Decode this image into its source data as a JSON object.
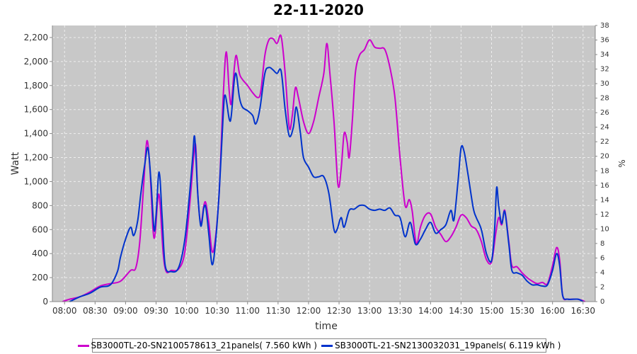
{
  "chart_data": {
    "type": "line",
    "title": "22-11-2020",
    "xlabel": "time",
    "ylabel": "Watt",
    "y2label": "%",
    "xlim": [
      "07:48",
      "16:42"
    ],
    "ylim": [
      0,
      2300
    ],
    "y2lim": [
      0,
      38
    ],
    "yticks": [
      "0",
      "200",
      "400",
      "600",
      "800",
      "1,000",
      "1,200",
      "1,400",
      "1,600",
      "1,800",
      "2,000",
      "2,200"
    ],
    "y2ticks": [
      "0",
      "2",
      "4",
      "6",
      "8",
      "10",
      "12",
      "14",
      "16",
      "18",
      "20",
      "22",
      "24",
      "26",
      "28",
      "30",
      "32",
      "34",
      "36",
      "38"
    ],
    "xticks": [
      "08:00",
      "08:30",
      "09:00",
      "09:30",
      "10:00",
      "10:30",
      "11:00",
      "11:30",
      "12:00",
      "12:30",
      "13:00",
      "13:30",
      "14:00",
      "14:30",
      "15:00",
      "15:30",
      "16:00",
      "16:30"
    ],
    "grid": true,
    "legend_position": "bottom",
    "background": "#c8c8c8",
    "series": [
      {
        "name": "SB3000TL-20-SN2100578613_21panels( 7.560 kWh )",
        "color": "#cc00cc",
        "points": [
          [
            "07:58",
            0
          ],
          [
            "08:05",
            20
          ],
          [
            "08:15",
            40
          ],
          [
            "08:25",
            80
          ],
          [
            "08:35",
            130
          ],
          [
            "08:45",
            150
          ],
          [
            "08:55",
            170
          ],
          [
            "09:05",
            260
          ],
          [
            "09:10",
            280
          ],
          [
            "09:14",
            500
          ],
          [
            "09:18",
            1000
          ],
          [
            "09:21",
            1340
          ],
          [
            "09:24",
            1100
          ],
          [
            "09:27",
            600
          ],
          [
            "09:29",
            560
          ],
          [
            "09:32",
            880
          ],
          [
            "09:34",
            800
          ],
          [
            "09:37",
            400
          ],
          [
            "09:40",
            250
          ],
          [
            "09:45",
            260
          ],
          [
            "09:52",
            270
          ],
          [
            "09:58",
            400
          ],
          [
            "10:03",
            800
          ],
          [
            "10:07",
            1200
          ],
          [
            "10:09",
            1300
          ],
          [
            "10:11",
            900
          ],
          [
            "10:14",
            650
          ],
          [
            "10:17",
            800
          ],
          [
            "10:19",
            820
          ],
          [
            "10:22",
            650
          ],
          [
            "10:25",
            420
          ],
          [
            "10:28",
            500
          ],
          [
            "10:32",
            900
          ],
          [
            "10:36",
            1700
          ],
          [
            "10:39",
            2080
          ],
          [
            "10:42",
            1750
          ],
          [
            "10:44",
            1650
          ],
          [
            "10:47",
            1950
          ],
          [
            "10:49",
            2050
          ],
          [
            "10:52",
            1900
          ],
          [
            "10:55",
            1850
          ],
          [
            "11:00",
            1800
          ],
          [
            "11:05",
            1740
          ],
          [
            "11:10",
            1700
          ],
          [
            "11:13",
            1750
          ],
          [
            "11:17",
            2050
          ],
          [
            "11:21",
            2180
          ],
          [
            "11:25",
            2190
          ],
          [
            "11:29",
            2150
          ],
          [
            "11:33",
            2210
          ],
          [
            "11:37",
            1900
          ],
          [
            "11:41",
            1450
          ],
          [
            "11:44",
            1550
          ],
          [
            "11:47",
            1780
          ],
          [
            "11:50",
            1700
          ],
          [
            "11:55",
            1500
          ],
          [
            "12:00",
            1400
          ],
          [
            "12:05",
            1500
          ],
          [
            "12:10",
            1700
          ],
          [
            "12:15",
            1900
          ],
          [
            "12:18",
            2150
          ],
          [
            "12:21",
            1900
          ],
          [
            "12:25",
            1500
          ],
          [
            "12:29",
            970
          ],
          [
            "12:32",
            1100
          ],
          [
            "12:35",
            1400
          ],
          [
            "12:38",
            1330
          ],
          [
            "12:40",
            1200
          ],
          [
            "12:43",
            1500
          ],
          [
            "12:46",
            1900
          ],
          [
            "12:50",
            2050
          ],
          [
            "12:55",
            2100
          ],
          [
            "13:00",
            2180
          ],
          [
            "13:05",
            2120
          ],
          [
            "13:10",
            2110
          ],
          [
            "13:15",
            2100
          ],
          [
            "13:20",
            1950
          ],
          [
            "13:25",
            1700
          ],
          [
            "13:30",
            1200
          ],
          [
            "13:35",
            800
          ],
          [
            "13:39",
            850
          ],
          [
            "13:42",
            750
          ],
          [
            "13:46",
            480
          ],
          [
            "13:50",
            620
          ],
          [
            "13:55",
            720
          ],
          [
            "14:00",
            730
          ],
          [
            "14:05",
            620
          ],
          [
            "14:10",
            560
          ],
          [
            "14:15",
            500
          ],
          [
            "14:20",
            540
          ],
          [
            "14:25",
            620
          ],
          [
            "14:30",
            720
          ],
          [
            "14:35",
            700
          ],
          [
            "14:40",
            630
          ],
          [
            "14:45",
            600
          ],
          [
            "14:50",
            500
          ],
          [
            "14:55",
            350
          ],
          [
            "15:00",
            330
          ],
          [
            "15:04",
            560
          ],
          [
            "15:07",
            700
          ],
          [
            "15:10",
            640
          ],
          [
            "15:13",
            760
          ],
          [
            "15:17",
            500
          ],
          [
            "15:20",
            300
          ],
          [
            "15:25",
            290
          ],
          [
            "15:30",
            240
          ],
          [
            "15:35",
            200
          ],
          [
            "15:40",
            170
          ],
          [
            "15:45",
            150
          ],
          [
            "15:50",
            160
          ],
          [
            "15:55",
            150
          ],
          [
            "16:00",
            300
          ],
          [
            "16:04",
            450
          ],
          [
            "16:07",
            350
          ],
          [
            "16:10",
            50
          ],
          [
            "16:15",
            20
          ],
          [
            "16:25",
            20
          ],
          [
            "16:32",
            0
          ]
        ]
      },
      {
        "name": "SB3000TL-21-SN2130032031_19panels( 6.119 kWh )",
        "color": "#0033cc",
        "points": [
          [
            "08:05",
            0
          ],
          [
            "08:15",
            40
          ],
          [
            "08:25",
            70
          ],
          [
            "08:35",
            120
          ],
          [
            "08:45",
            140
          ],
          [
            "08:52",
            250
          ],
          [
            "08:55",
            370
          ],
          [
            "09:00",
            520
          ],
          [
            "09:05",
            620
          ],
          [
            "09:08",
            550
          ],
          [
            "09:12",
            680
          ],
          [
            "09:15",
            900
          ],
          [
            "09:19",
            1150
          ],
          [
            "09:22",
            1280
          ],
          [
            "09:25",
            1000
          ],
          [
            "09:28",
            600
          ],
          [
            "09:30",
            720
          ],
          [
            "09:33",
            1080
          ],
          [
            "09:36",
            700
          ],
          [
            "09:39",
            300
          ],
          [
            "09:45",
            250
          ],
          [
            "09:52",
            280
          ],
          [
            "09:58",
            500
          ],
          [
            "10:03",
            900
          ],
          [
            "10:06",
            1200
          ],
          [
            "10:08",
            1370
          ],
          [
            "10:11",
            900
          ],
          [
            "10:14",
            630
          ],
          [
            "10:17",
            780
          ],
          [
            "10:19",
            780
          ],
          [
            "10:22",
            550
          ],
          [
            "10:25",
            310
          ],
          [
            "10:28",
            450
          ],
          [
            "10:32",
            900
          ],
          [
            "10:36",
            1550
          ],
          [
            "10:38",
            1720
          ],
          [
            "10:42",
            1520
          ],
          [
            "10:44",
            1550
          ],
          [
            "10:47",
            1850
          ],
          [
            "10:49",
            1890
          ],
          [
            "10:52",
            1700
          ],
          [
            "10:55",
            1620
          ],
          [
            "11:00",
            1590
          ],
          [
            "11:05",
            1550
          ],
          [
            "11:08",
            1480
          ],
          [
            "11:12",
            1600
          ],
          [
            "11:17",
            1900
          ],
          [
            "11:21",
            1950
          ],
          [
            "11:25",
            1930
          ],
          [
            "11:29",
            1900
          ],
          [
            "11:33",
            1920
          ],
          [
            "11:37",
            1600
          ],
          [
            "11:41",
            1380
          ],
          [
            "11:45",
            1450
          ],
          [
            "11:48",
            1620
          ],
          [
            "11:52",
            1400
          ],
          [
            "11:55",
            1200
          ],
          [
            "12:00",
            1120
          ],
          [
            "12:05",
            1040
          ],
          [
            "12:10",
            1040
          ],
          [
            "12:15",
            1040
          ],
          [
            "12:20",
            900
          ],
          [
            "12:25",
            600
          ],
          [
            "12:28",
            600
          ],
          [
            "12:32",
            700
          ],
          [
            "12:35",
            620
          ],
          [
            "12:40",
            760
          ],
          [
            "12:45",
            770
          ],
          [
            "12:50",
            800
          ],
          [
            "12:55",
            800
          ],
          [
            "13:00",
            770
          ],
          [
            "13:05",
            760
          ],
          [
            "13:10",
            770
          ],
          [
            "13:15",
            760
          ],
          [
            "13:20",
            780
          ],
          [
            "13:25",
            720
          ],
          [
            "13:30",
            700
          ],
          [
            "13:35",
            540
          ],
          [
            "13:40",
            660
          ],
          [
            "13:45",
            480
          ],
          [
            "13:50",
            520
          ],
          [
            "13:55",
            600
          ],
          [
            "14:00",
            660
          ],
          [
            "14:05",
            570
          ],
          [
            "14:10",
            600
          ],
          [
            "14:15",
            640
          ],
          [
            "14:20",
            760
          ],
          [
            "14:23",
            680
          ],
          [
            "14:27",
            1000
          ],
          [
            "14:30",
            1280
          ],
          [
            "14:33",
            1250
          ],
          [
            "14:37",
            1050
          ],
          [
            "14:42",
            780
          ],
          [
            "14:45",
            700
          ],
          [
            "14:50",
            600
          ],
          [
            "14:55",
            400
          ],
          [
            "15:00",
            340
          ],
          [
            "15:03",
            600
          ],
          [
            "15:05",
            950
          ],
          [
            "15:07",
            800
          ],
          [
            "15:10",
            650
          ],
          [
            "15:13",
            750
          ],
          [
            "15:17",
            480
          ],
          [
            "15:20",
            260
          ],
          [
            "15:25",
            240
          ],
          [
            "15:30",
            220
          ],
          [
            "15:35",
            170
          ],
          [
            "15:40",
            140
          ],
          [
            "15:45",
            140
          ],
          [
            "15:50",
            130
          ],
          [
            "15:55",
            140
          ],
          [
            "16:00",
            260
          ],
          [
            "16:04",
            400
          ],
          [
            "16:07",
            300
          ],
          [
            "16:10",
            50
          ],
          [
            "16:15",
            20
          ],
          [
            "16:25",
            20
          ],
          [
            "16:30",
            0
          ]
        ]
      }
    ]
  }
}
